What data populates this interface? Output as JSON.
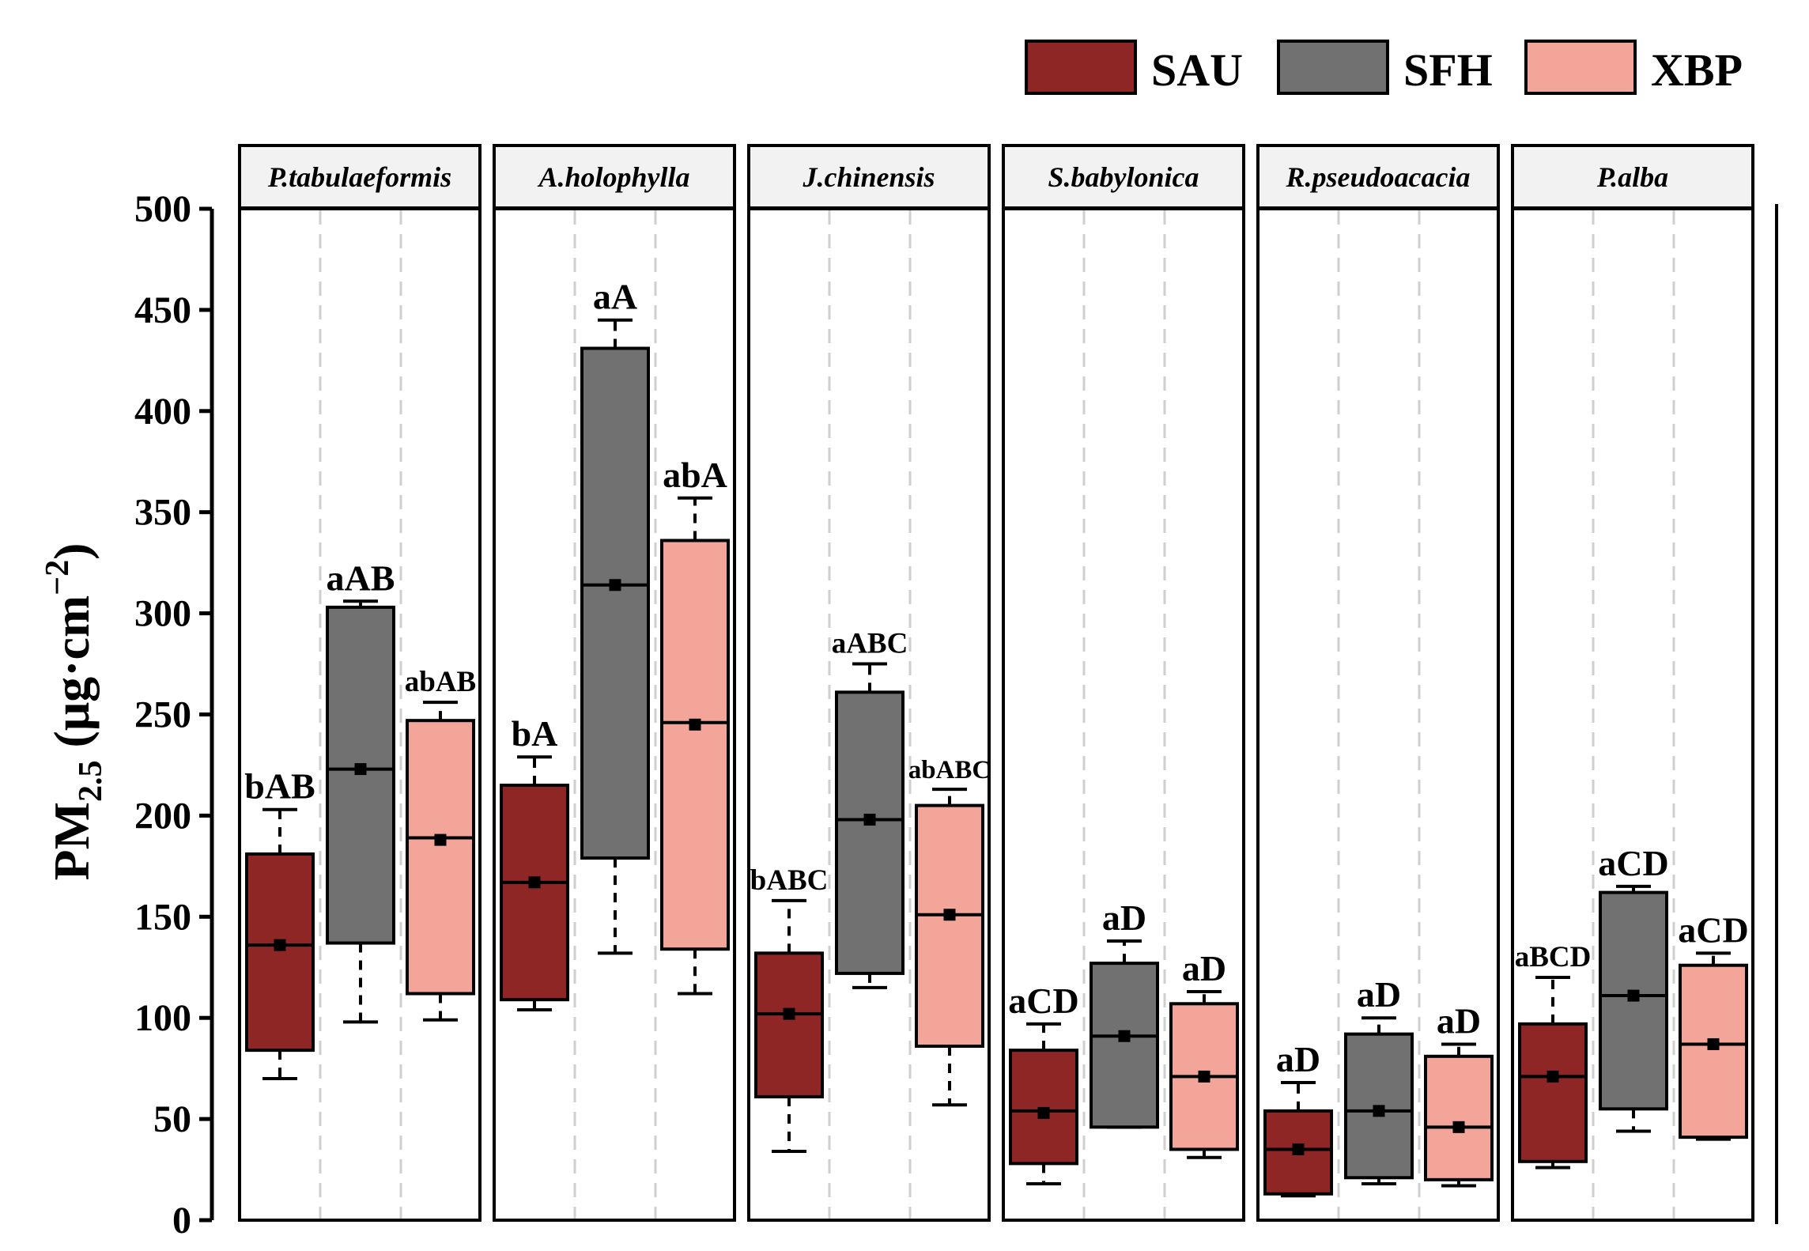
{
  "chart_data": {
    "type": "box",
    "ylabel": {
      "base": "PM",
      "sub": "2.5",
      "units": " (μg·cm",
      "sup": "−2",
      "close": ")"
    },
    "ylim": [
      0,
      500
    ],
    "yticks": [
      0,
      50,
      100,
      150,
      200,
      250,
      300,
      350,
      400,
      450,
      500
    ],
    "grid": "vertical dashed",
    "legend": {
      "position": "top-right",
      "entries": [
        {
          "name": "SAU",
          "color": "#8e2626"
        },
        {
          "name": "SFH",
          "color": "#717171"
        },
        {
          "name": "XBP",
          "color": "#f4a59a"
        }
      ]
    },
    "panels": [
      {
        "title": "P.tabulaeformis",
        "boxes": [
          {
            "group": "SAU",
            "whisker_low": 70,
            "q1": 84,
            "median": 136,
            "q3": 181,
            "whisker_high": 203,
            "mean": 136,
            "label": "bAB"
          },
          {
            "group": "SFH",
            "whisker_low": 98,
            "q1": 137,
            "median": 223,
            "q3": 303,
            "whisker_high": 306,
            "mean": 223,
            "label": "aAB"
          },
          {
            "group": "XBP",
            "whisker_low": 99,
            "q1": 112,
            "median": 189,
            "q3": 247,
            "whisker_high": 256,
            "mean": 188,
            "label": "abAB"
          }
        ]
      },
      {
        "title": "A.holophylla",
        "boxes": [
          {
            "group": "SAU",
            "whisker_low": 104,
            "q1": 109,
            "median": 167,
            "q3": 215,
            "whisker_high": 229,
            "mean": 167,
            "label": "bA"
          },
          {
            "group": "SFH",
            "whisker_low": 132,
            "q1": 179,
            "median": 314,
            "q3": 431,
            "whisker_high": 445,
            "mean": 314,
            "label": "aA"
          },
          {
            "group": "XBP",
            "whisker_low": 112,
            "q1": 134,
            "median": 246,
            "q3": 336,
            "whisker_high": 357,
            "mean": 245,
            "label": "abA"
          }
        ]
      },
      {
        "title": "J.chinensis",
        "boxes": [
          {
            "group": "SAU",
            "whisker_low": 34,
            "q1": 61,
            "median": 102,
            "q3": 132,
            "whisker_high": 158,
            "mean": 102,
            "label": "bABC"
          },
          {
            "group": "SFH",
            "whisker_low": 115,
            "q1": 122,
            "median": 198,
            "q3": 261,
            "whisker_high": 275,
            "mean": 198,
            "label": "aABC"
          },
          {
            "group": "XBP",
            "whisker_low": 57,
            "q1": 86,
            "median": 151,
            "q3": 205,
            "whisker_high": 213,
            "mean": 151,
            "label": "abABC"
          }
        ]
      },
      {
        "title": "S.babylonica",
        "boxes": [
          {
            "group": "SAU",
            "whisker_low": 18,
            "q1": 28,
            "median": 54,
            "q3": 84,
            "whisker_high": 97,
            "mean": 53,
            "label": "aCD"
          },
          {
            "group": "SFH",
            "whisker_low": 46,
            "q1": 46,
            "median": 91,
            "q3": 127,
            "whisker_high": 138,
            "mean": 91,
            "label": "aD"
          },
          {
            "group": "XBP",
            "whisker_low": 31,
            "q1": 35,
            "median": 71,
            "q3": 107,
            "whisker_high": 113,
            "mean": 71,
            "label": "aD"
          }
        ]
      },
      {
        "title": "R.pseudoacacia",
        "boxes": [
          {
            "group": "SAU",
            "whisker_low": 12,
            "q1": 13,
            "median": 35,
            "q3": 54,
            "whisker_high": 68,
            "mean": 35,
            "label": "aD"
          },
          {
            "group": "SFH",
            "whisker_low": 18,
            "q1": 21,
            "median": 54,
            "q3": 92,
            "whisker_high": 100,
            "mean": 54,
            "label": "aD"
          },
          {
            "group": "XBP",
            "whisker_low": 17,
            "q1": 20,
            "median": 46,
            "q3": 81,
            "whisker_high": 87,
            "mean": 46,
            "label": "aD"
          }
        ]
      },
      {
        "title": "P.alba",
        "boxes": [
          {
            "group": "SAU",
            "whisker_low": 26,
            "q1": 29,
            "median": 71,
            "q3": 97,
            "whisker_high": 120,
            "mean": 71,
            "label": "aBCD"
          },
          {
            "group": "SFH",
            "whisker_low": 44,
            "q1": 55,
            "median": 111,
            "q3": 162,
            "whisker_high": 165,
            "mean": 111,
            "label": "aCD"
          },
          {
            "group": "XBP",
            "whisker_low": 40,
            "q1": 41,
            "median": 87,
            "q3": 126,
            "whisker_high": 132,
            "mean": 87,
            "label": "aCD"
          }
        ]
      }
    ]
  }
}
